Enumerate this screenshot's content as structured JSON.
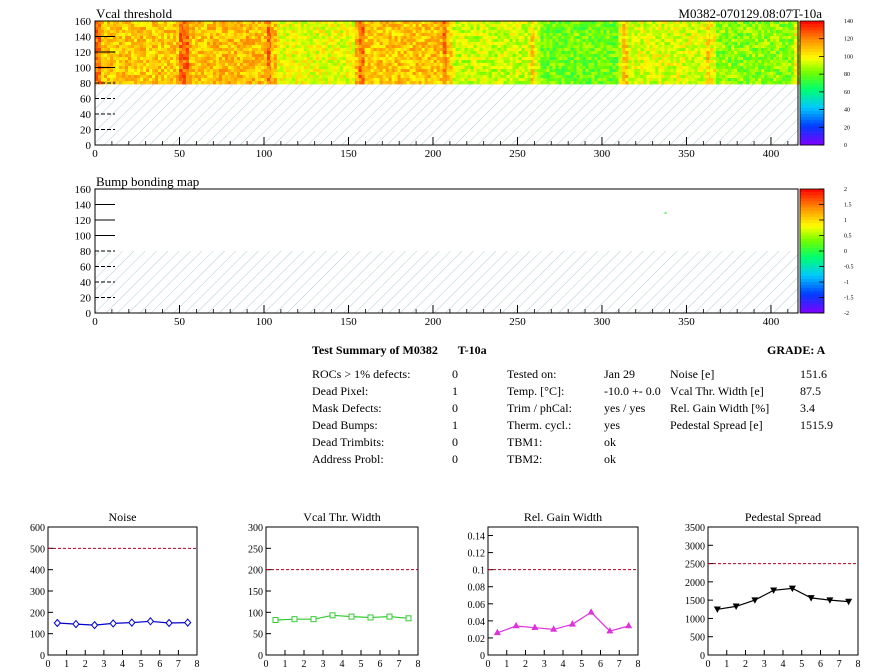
{
  "header": {
    "title_top": "Vcal threshold",
    "module_label": "M0382-070129.08:07T-10a",
    "title_bottom": "Bump bonding map"
  },
  "maps_axis": {
    "x_ticks": [
      "0",
      "50",
      "100",
      "150",
      "200",
      "250",
      "300",
      "350",
      "400"
    ],
    "y_ticks": [
      "0",
      "20",
      "40",
      "60",
      "80",
      "100",
      "120",
      "140",
      "160"
    ]
  },
  "palette_top": {
    "labels": [
      "140",
      "120",
      "100",
      "80",
      "60",
      "40",
      "20",
      "0"
    ]
  },
  "palette_bottom": {
    "labels": [
      "2",
      "1.5",
      "1",
      "0.5",
      "0",
      "-0.5",
      "-1",
      "-1.5",
      "-2"
    ]
  },
  "summary": {
    "title": "Test Summary of M0382",
    "temp_label": "T-10a",
    "grade": "GRADE:  A",
    "defects": [
      {
        "label": "ROCs > 1% defects:",
        "value": "0"
      },
      {
        "label": "Dead Pixel:",
        "value": "1"
      },
      {
        "label": "Mask Defects:",
        "value": "0"
      },
      {
        "label": "Dead Bumps:",
        "value": "1"
      },
      {
        "label": "Dead Trimbits:",
        "value": "0"
      },
      {
        "label": "Address Probl:",
        "value": "0"
      }
    ],
    "conditions": [
      {
        "label": "Tested on:",
        "value": "Jan 29"
      },
      {
        "label": "Temp. [°C]:",
        "value": "-10.0 +- 0.0"
      },
      {
        "label": "Trim / phCal:",
        "value": "yes / yes"
      },
      {
        "label": "Therm. cycl.:",
        "value": "yes"
      },
      {
        "label": "TBM1:",
        "value": "ok"
      },
      {
        "label": "TBM2:",
        "value": "ok"
      }
    ],
    "results": [
      {
        "label": "Noise [e]",
        "value": "151.6"
      },
      {
        "label": "Vcal Thr. Width [e]",
        "value": "87.5"
      },
      {
        "label": "Rel. Gain Width [%]",
        "value": "3.4"
      },
      {
        "label": "Pedestal Spread [e]",
        "value": "1515.9"
      }
    ]
  },
  "chart_data": [
    {
      "type": "heatmap",
      "title": "Vcal threshold",
      "xlim": [
        0,
        416
      ],
      "ylim": [
        0,
        160
      ],
      "zlim": [
        0,
        140
      ],
      "rows_filled": [
        80,
        160
      ],
      "x_ticks": [
        0,
        50,
        100,
        150,
        200,
        250,
        300,
        350,
        400
      ],
      "y_ticks": [
        0,
        20,
        40,
        60,
        80,
        100,
        120,
        140,
        160
      ],
      "roc_segments": [
        {
          "x": [
            0,
            52
          ],
          "level": 108
        },
        {
          "x": [
            52,
            104
          ],
          "level": 110
        },
        {
          "x": [
            104,
            156
          ],
          "level": 96
        },
        {
          "x": [
            156,
            208
          ],
          "level": 108
        },
        {
          "x": [
            208,
            260
          ],
          "level": 92
        },
        {
          "x": [
            260,
            312
          ],
          "level": 80
        },
        {
          "x": [
            312,
            364
          ],
          "level": 94
        },
        {
          "x": [
            364,
            416
          ],
          "level": 84
        }
      ]
    },
    {
      "type": "heatmap",
      "title": "Bump bonding map",
      "xlim": [
        0,
        416
      ],
      "ylim": [
        0,
        160
      ],
      "zlim": [
        -2,
        2
      ],
      "rows_filled": [
        80,
        160
      ],
      "x_ticks": [
        0,
        50,
        100,
        150,
        200,
        250,
        300,
        350,
        400
      ],
      "y_ticks": [
        0,
        20,
        40,
        60,
        80,
        100,
        120,
        140,
        160
      ],
      "points": [
        {
          "x": 337,
          "y": 130
        }
      ]
    },
    {
      "type": "line",
      "title": "Noise",
      "x": [
        0.5,
        1.5,
        2.5,
        3.5,
        4.5,
        5.5,
        6.5,
        7.5
      ],
      "values": [
        150,
        145,
        140,
        148,
        152,
        158,
        150,
        152
      ],
      "xlim": [
        0,
        8
      ],
      "ylim": [
        0,
        600
      ],
      "x_ticks": [
        0,
        1,
        2,
        3,
        4,
        5,
        6,
        7,
        8
      ],
      "y_ticks": [
        0,
        100,
        200,
        300,
        400,
        500,
        600
      ],
      "limit": 500,
      "marker": "diamond",
      "color": "#0000cc"
    },
    {
      "type": "line",
      "title": "Vcal Thr. Width",
      "x": [
        0.5,
        1.5,
        2.5,
        3.5,
        4.5,
        5.5,
        6.5,
        7.5
      ],
      "values": [
        82,
        84,
        84,
        93,
        90,
        88,
        90,
        86
      ],
      "xlim": [
        0,
        8
      ],
      "ylim": [
        0,
        300
      ],
      "x_ticks": [
        0,
        1,
        2,
        3,
        4,
        5,
        6,
        7,
        8
      ],
      "y_ticks": [
        0,
        50,
        100,
        150,
        200,
        250,
        300
      ],
      "limit": 200,
      "marker": "square",
      "color": "#33cc33"
    },
    {
      "type": "line",
      "title": "Rel. Gain Width",
      "x": [
        0.5,
        1.5,
        2.5,
        3.5,
        4.5,
        5.5,
        6.5,
        7.5
      ],
      "values": [
        0.026,
        0.034,
        0.032,
        0.03,
        0.036,
        0.05,
        0.028,
        0.034
      ],
      "xlim": [
        0,
        8
      ],
      "ylim": [
        0,
        0.15
      ],
      "x_ticks": [
        0,
        1,
        2,
        3,
        4,
        5,
        6,
        7,
        8
      ],
      "y_ticks": [
        0,
        0.02,
        0.04,
        0.06,
        0.08,
        0.1,
        0.12,
        0.14
      ],
      "y_tick_labels": [
        "0",
        "0.02",
        "0.04",
        "0.06",
        "0.08",
        "0.1",
        "0.12",
        "0.14"
      ],
      "limit": 0.1,
      "marker": "triangle",
      "color": "#dd33dd"
    },
    {
      "type": "line",
      "title": "Pedestal Spread",
      "x": [
        0.5,
        1.5,
        2.5,
        3.5,
        4.5,
        5.5,
        6.5,
        7.5
      ],
      "values": [
        1250,
        1330,
        1500,
        1770,
        1820,
        1560,
        1500,
        1460
      ],
      "xlim": [
        0,
        8
      ],
      "ylim": [
        0,
        3500
      ],
      "x_ticks": [
        0,
        1,
        2,
        3,
        4,
        5,
        6,
        7,
        8
      ],
      "y_ticks": [
        0,
        500,
        1000,
        1500,
        2000,
        2500,
        3000,
        3500
      ],
      "limit": 2500,
      "marker": "triangle-down",
      "color": "#000000"
    }
  ]
}
